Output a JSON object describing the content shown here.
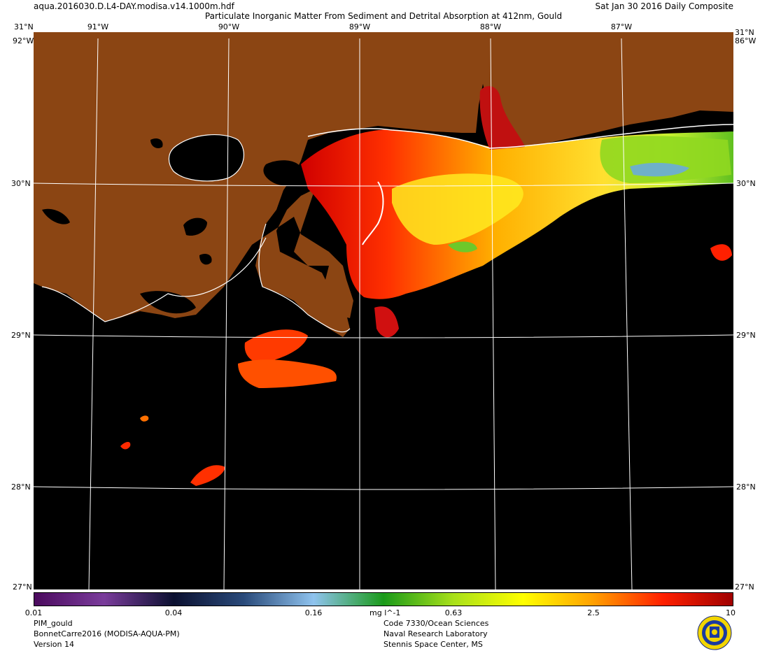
{
  "header": {
    "file_name": "aqua.2016030.D.L4-DAY.modisa.v14.1000m.hdf",
    "composite_date": "Sat Jan 30 2016 Daily Composite",
    "title": "Particulate Inorganic Matter From Sediment and Detrital Absorption at 412nm, Gould"
  },
  "graticule": {
    "longitude_labels": [
      "91°W",
      "90°W",
      "89°W",
      "88°W",
      "87°W"
    ],
    "latitude_labels": [
      "30°N",
      "29°N",
      "28°N"
    ],
    "corner_top_left": "31°N",
    "corner_top_right": "31°N",
    "corner_left_lon": "92°W",
    "corner_right_lon": "86°W",
    "corner_bottom_left": "27°N",
    "corner_bottom_right": "27°N"
  },
  "colorbar": {
    "unit": "mg l^-1",
    "tick_labels": [
      "0.01",
      "0.04",
      "0.16",
      "0.63",
      "2.5",
      "10"
    ],
    "scale": "log",
    "range": [
      0.01,
      10
    ],
    "colors": [
      "#4b0a5e",
      "#7a3c9b",
      "#0b1030",
      "#2a4a7a",
      "#8fc3ee",
      "#1a9a1a",
      "#a8e01a",
      "#ffff00",
      "#ffa000",
      "#ff2000",
      "#a00000"
    ]
  },
  "map": {
    "land_color": "#8b4513",
    "no_data_color": "#000000",
    "coastline_color": "#ffffff",
    "grid_color": "#ffffff"
  },
  "footer": {
    "product": "PIM_gould",
    "dataset": "BonnetCarre2016 (MODISA-AQUA-PM)",
    "version": "Version 14",
    "code": "Code 7330/Ocean Sciences",
    "lab": "Naval Research Laboratory",
    "location": "Stennis Space Center, MS"
  }
}
